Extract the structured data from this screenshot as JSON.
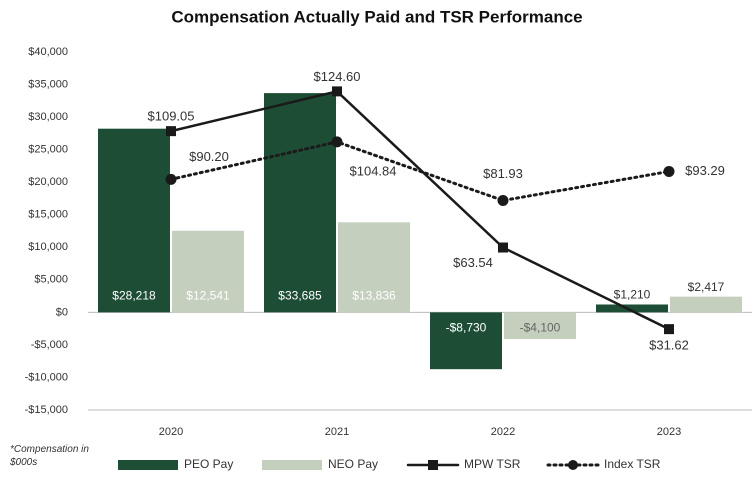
{
  "chart_data": {
    "type": "bar",
    "title": "Compensation Actually Paid and TSR Performance",
    "categories": [
      "2020",
      "2021",
      "2022",
      "2023"
    ],
    "series": [
      {
        "name": "PEO Pay",
        "color": "#1e4d36",
        "values": [
          28218,
          33685,
          -8730,
          1210
        ],
        "value_labels": [
          "$28,218",
          "$33,685",
          "-$8,730",
          "$1,210"
        ]
      },
      {
        "name": "NEO Pay",
        "color": "#c5cfbd",
        "values": [
          12541,
          13836,
          -4100,
          2417
        ],
        "value_labels": [
          "$12,541",
          "$13,836",
          "-$4,100",
          "$2,417"
        ]
      },
      {
        "name": "MPW TSR",
        "type": "line",
        "axis": "y2",
        "color": "#1a1a1a",
        "marker": "square",
        "line_style": "solid",
        "values": [
          109.05,
          124.6,
          63.54,
          31.62
        ],
        "value_labels": [
          "$109.05",
          "$124.60",
          "$63.54",
          "$31.62"
        ]
      },
      {
        "name": "Index TSR",
        "type": "line",
        "axis": "y2",
        "color": "#1a1a1a",
        "marker": "circle",
        "line_style": "dotted",
        "values": [
          90.2,
          104.84,
          81.93,
          93.29
        ],
        "value_labels": [
          "$90.20",
          "$104.84",
          "$81.93",
          "$93.29"
        ]
      }
    ],
    "ylim": [
      -15000,
      40000
    ],
    "yticks": [
      {
        "value": -15000,
        "label": "-$15,000"
      },
      {
        "value": -10000,
        "label": "-$10,000"
      },
      {
        "value": -5000,
        "label": "-$5,000"
      },
      {
        "value": 0,
        "label": "$0"
      },
      {
        "value": 5000,
        "label": "$5,000"
      },
      {
        "value": 10000,
        "label": "$10,000"
      },
      {
        "value": 15000,
        "label": "$15,000"
      },
      {
        "value": 20000,
        "label": "$20,000"
      },
      {
        "value": 25000,
        "label": "$25,000"
      },
      {
        "value": 30000,
        "label": "$30,000"
      },
      {
        "value": 35000,
        "label": "$35,000"
      },
      {
        "value": 40000,
        "label": "$40,000"
      }
    ],
    "y2lim": [
      0,
      140
    ],
    "grid": false,
    "footnote": "*Compensation in $000s",
    "legend": "bottom"
  }
}
